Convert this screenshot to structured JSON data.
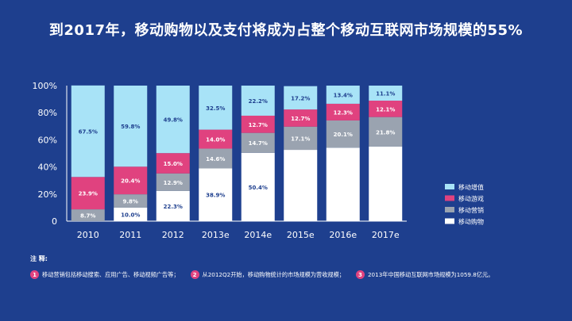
{
  "title": "到2017年，移动购物以及支付将成为占整个移动互联网市场规模的55%",
  "colors": {
    "background": "#1e3f8e",
    "shopping": "#ffffff",
    "marketing": "#9aa3b0",
    "games": "#e0427f",
    "value_added": "#a8e3f7"
  },
  "chart_data": {
    "type": "bar",
    "stacked": true,
    "categories": [
      "2010",
      "2011",
      "2012",
      "2013e",
      "2014e",
      "2015e",
      "2016e",
      "2017e"
    ],
    "series": [
      {
        "key": "shopping",
        "name": "移动购物",
        "values": [
          0,
          10.0,
          22.3,
          38.9,
          50.4,
          52.6,
          54.2,
          55.0
        ],
        "labels": [
          "",
          "10.0%",
          "22.3%",
          "38.9%",
          "50.4%",
          "",
          "",
          ""
        ]
      },
      {
        "key": "marketing",
        "name": "移动营销",
        "values": [
          8.7,
          9.8,
          12.9,
          14.6,
          14.7,
          17.1,
          20.1,
          21.8
        ],
        "labels": [
          "8.7%",
          "9.8%",
          "12.9%",
          "14.6%",
          "14.7%",
          "17.1%",
          "20.1%",
          "21.8%"
        ]
      },
      {
        "key": "games",
        "name": "移动游戏",
        "values": [
          23.9,
          20.4,
          15.0,
          14.0,
          12.7,
          12.7,
          12.3,
          12.1
        ],
        "labels": [
          "23.9%",
          "20.4%",
          "15.0%",
          "14.0%",
          "12.7%",
          "12.7%",
          "12.3%",
          "12.1%"
        ]
      },
      {
        "key": "value_added",
        "name": "移动增值",
        "values": [
          67.5,
          59.8,
          49.8,
          32.5,
          22.2,
          17.2,
          13.4,
          11.1
        ],
        "labels": [
          "67.5%",
          "59.8%",
          "49.8%",
          "32.5%",
          "22.2%",
          "17.2%",
          "13.4%",
          "11.1%"
        ]
      }
    ],
    "yticks": [
      "0",
      "20%",
      "40%",
      "60%",
      "80%",
      "100%"
    ],
    "ylim": [
      0,
      100
    ],
    "legend_order": [
      "value_added",
      "games",
      "marketing",
      "shopping"
    ],
    "legend_position": "right"
  },
  "notes": {
    "title": "注 释:",
    "items": [
      {
        "num": "1",
        "text": "移动营销包括移动搜索、应用广告、移动视频广告等；"
      },
      {
        "num": "2",
        "text": "从2012Q2开始，移动购物统计的市场规模为营收规模；"
      },
      {
        "num": "3",
        "text": "2013年中国移动互联网市场规模为1059.8亿元。"
      }
    ]
  }
}
